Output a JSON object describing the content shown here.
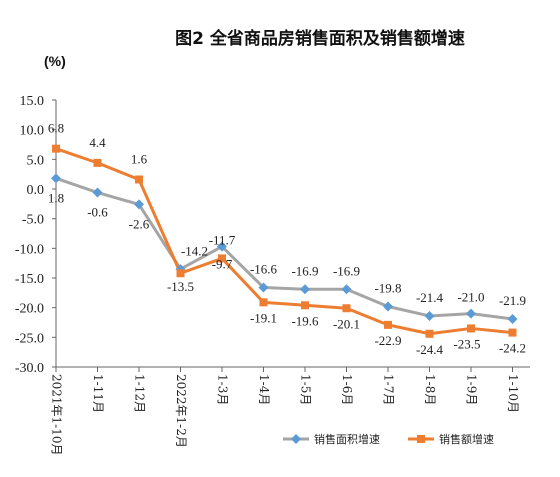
{
  "chart_data": {
    "type": "line",
    "title": "图2 全省商品房销售面积及销售额增速",
    "ylabel": "(%)",
    "ylim": [
      -30,
      15
    ],
    "yticks": [
      "15.0",
      "10.0",
      "5.0",
      "0.0",
      "-5.0",
      "-10.0",
      "-15.0",
      "-20.0",
      "-25.0",
      "-30.0"
    ],
    "categories": [
      "2021年1-10月",
      "1-11月",
      "1-12月",
      "2022年1-2月",
      "1-3月",
      "1-4月",
      "1-5月",
      "1-6月",
      "1-7月",
      "1-8月",
      "1-9月",
      "1-10月"
    ],
    "series": [
      {
        "name": "销售面积增速",
        "color": "#a5a5a5",
        "marker": "diamond",
        "marker_color": "#5b9bd5",
        "values": [
          1.8,
          -0.6,
          -2.6,
          -13.5,
          -9.7,
          -16.6,
          -16.9,
          -16.9,
          -19.8,
          -21.4,
          -21.0,
          -21.9
        ],
        "labels": [
          "1.8",
          "-0.6",
          "-2.6",
          "-13.5",
          "-9.7",
          "-16.6",
          "-16.9",
          "-16.9",
          "-19.8",
          "-21.4",
          "-21.0",
          "-21.9"
        ]
      },
      {
        "name": "销售额增速",
        "color": "#ed7d31",
        "marker": "square",
        "marker_color": "#ed7d31",
        "values": [
          6.8,
          4.4,
          1.6,
          -14.2,
          -11.7,
          -19.1,
          -19.6,
          -20.1,
          -22.9,
          -24.4,
          -23.5,
          -24.2
        ],
        "labels": [
          "6.8",
          "4.4",
          "1.6",
          "-14.2",
          "-11.7",
          "-19.1",
          "-19.6",
          "-20.1",
          "-22.9",
          "-24.4",
          "-23.5",
          "-24.2"
        ]
      }
    ],
    "grid": false,
    "legend": "bottom-right"
  }
}
